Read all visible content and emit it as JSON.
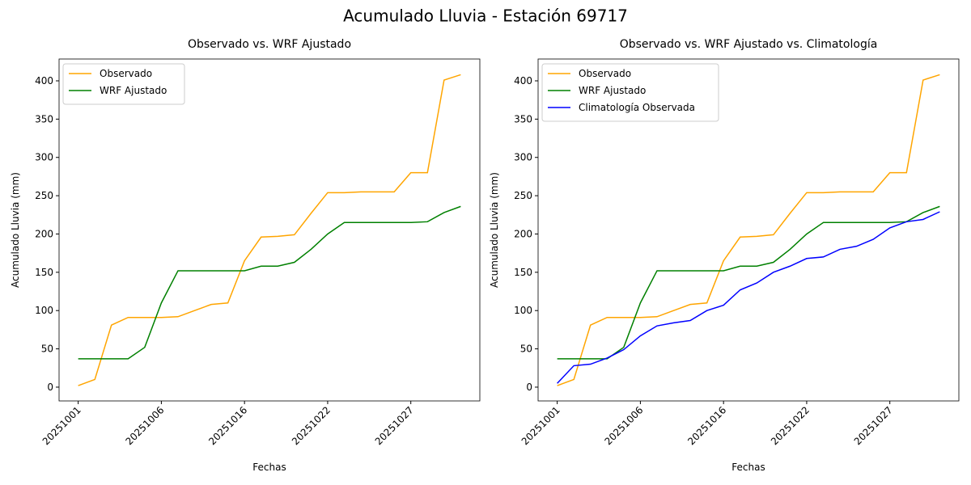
{
  "title": "Acumulado Lluvia - Estación 69717",
  "chart_data": [
    {
      "type": "line",
      "title": "Observado vs. WRF Ajustado",
      "x_label": "Fechas",
      "y_label": "Acumulado Lluvia (mm)",
      "categories": [
        "20251001",
        null,
        null,
        null,
        null,
        "20251006",
        null,
        null,
        null,
        null,
        "20251016",
        null,
        null,
        null,
        null,
        "20251022",
        null,
        null,
        null,
        null,
        "20251027",
        null,
        null,
        null
      ],
      "ylim": [
        -18,
        428.5
      ],
      "yticks": [
        0,
        50,
        100,
        150,
        200,
        250,
        300,
        350,
        400
      ],
      "legend": "upper left",
      "series": [
        {
          "name": "Observado",
          "color": "orange",
          "values": [
            2,
            10,
            81,
            91,
            91,
            91,
            92,
            100,
            108,
            110,
            165,
            196,
            197,
            199,
            227,
            254,
            254,
            255,
            255,
            255,
            280,
            280,
            401,
            408
          ]
        },
        {
          "name": "WRF Ajustado",
          "color": "green",
          "values": [
            37,
            37,
            37,
            37,
            52,
            110,
            152,
            152,
            152,
            152,
            152,
            158,
            158,
            163,
            180,
            200,
            215,
            215,
            215,
            215,
            215,
            216,
            228,
            236
          ]
        }
      ]
    },
    {
      "type": "line",
      "title": "Observado vs. WRF Ajustado vs. Climatología",
      "x_label": "Fechas",
      "y_label": "Acumulado Lluvia (mm)",
      "categories": [
        "20251001",
        null,
        null,
        null,
        null,
        "20251006",
        null,
        null,
        null,
        null,
        "20251016",
        null,
        null,
        null,
        null,
        "20251022",
        null,
        null,
        null,
        null,
        "20251027",
        null,
        null,
        null
      ],
      "ylim": [
        -18,
        428.5
      ],
      "yticks": [
        0,
        50,
        100,
        150,
        200,
        250,
        300,
        350,
        400
      ],
      "legend": "upper left",
      "series": [
        {
          "name": "Observado",
          "color": "orange",
          "values": [
            2,
            10,
            81,
            91,
            91,
            91,
            92,
            100,
            108,
            110,
            165,
            196,
            197,
            199,
            227,
            254,
            254,
            255,
            255,
            255,
            280,
            280,
            401,
            408
          ]
        },
        {
          "name": "WRF Ajustado",
          "color": "green",
          "values": [
            37,
            37,
            37,
            37,
            52,
            110,
            152,
            152,
            152,
            152,
            152,
            158,
            158,
            163,
            180,
            200,
            215,
            215,
            215,
            215,
            215,
            216,
            228,
            236
          ]
        },
        {
          "name": "Climatología Observada",
          "color": "blue",
          "values": [
            5,
            28,
            30,
            38,
            49,
            67,
            80,
            84,
            87,
            100,
            107,
            127,
            136,
            150,
            158,
            168,
            170,
            180,
            184,
            193,
            208,
            216,
            219,
            229
          ]
        }
      ]
    }
  ]
}
